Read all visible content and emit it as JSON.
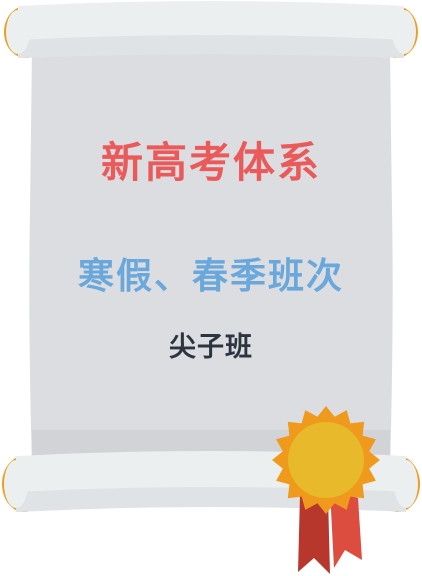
{
  "certificate": {
    "title": "新高考体系",
    "subtitle": "寒假、春季班次",
    "class_name": "尖子班"
  },
  "colors": {
    "title": "#ea5a5a",
    "subtitle": "#6aa8dc",
    "class_name": "#2c3440",
    "paper": "#dcdde0",
    "roll": "#eceff0",
    "roll_end": "#ee9d20",
    "medal_outer": "#ef9a1c",
    "medal_inner": "#e8b92a",
    "ribbon_dark": "#b8372d",
    "ribbon_light": "#dd4d3f"
  },
  "icons": {
    "scroll": "scroll-icon",
    "medal": "award-medal-icon"
  }
}
